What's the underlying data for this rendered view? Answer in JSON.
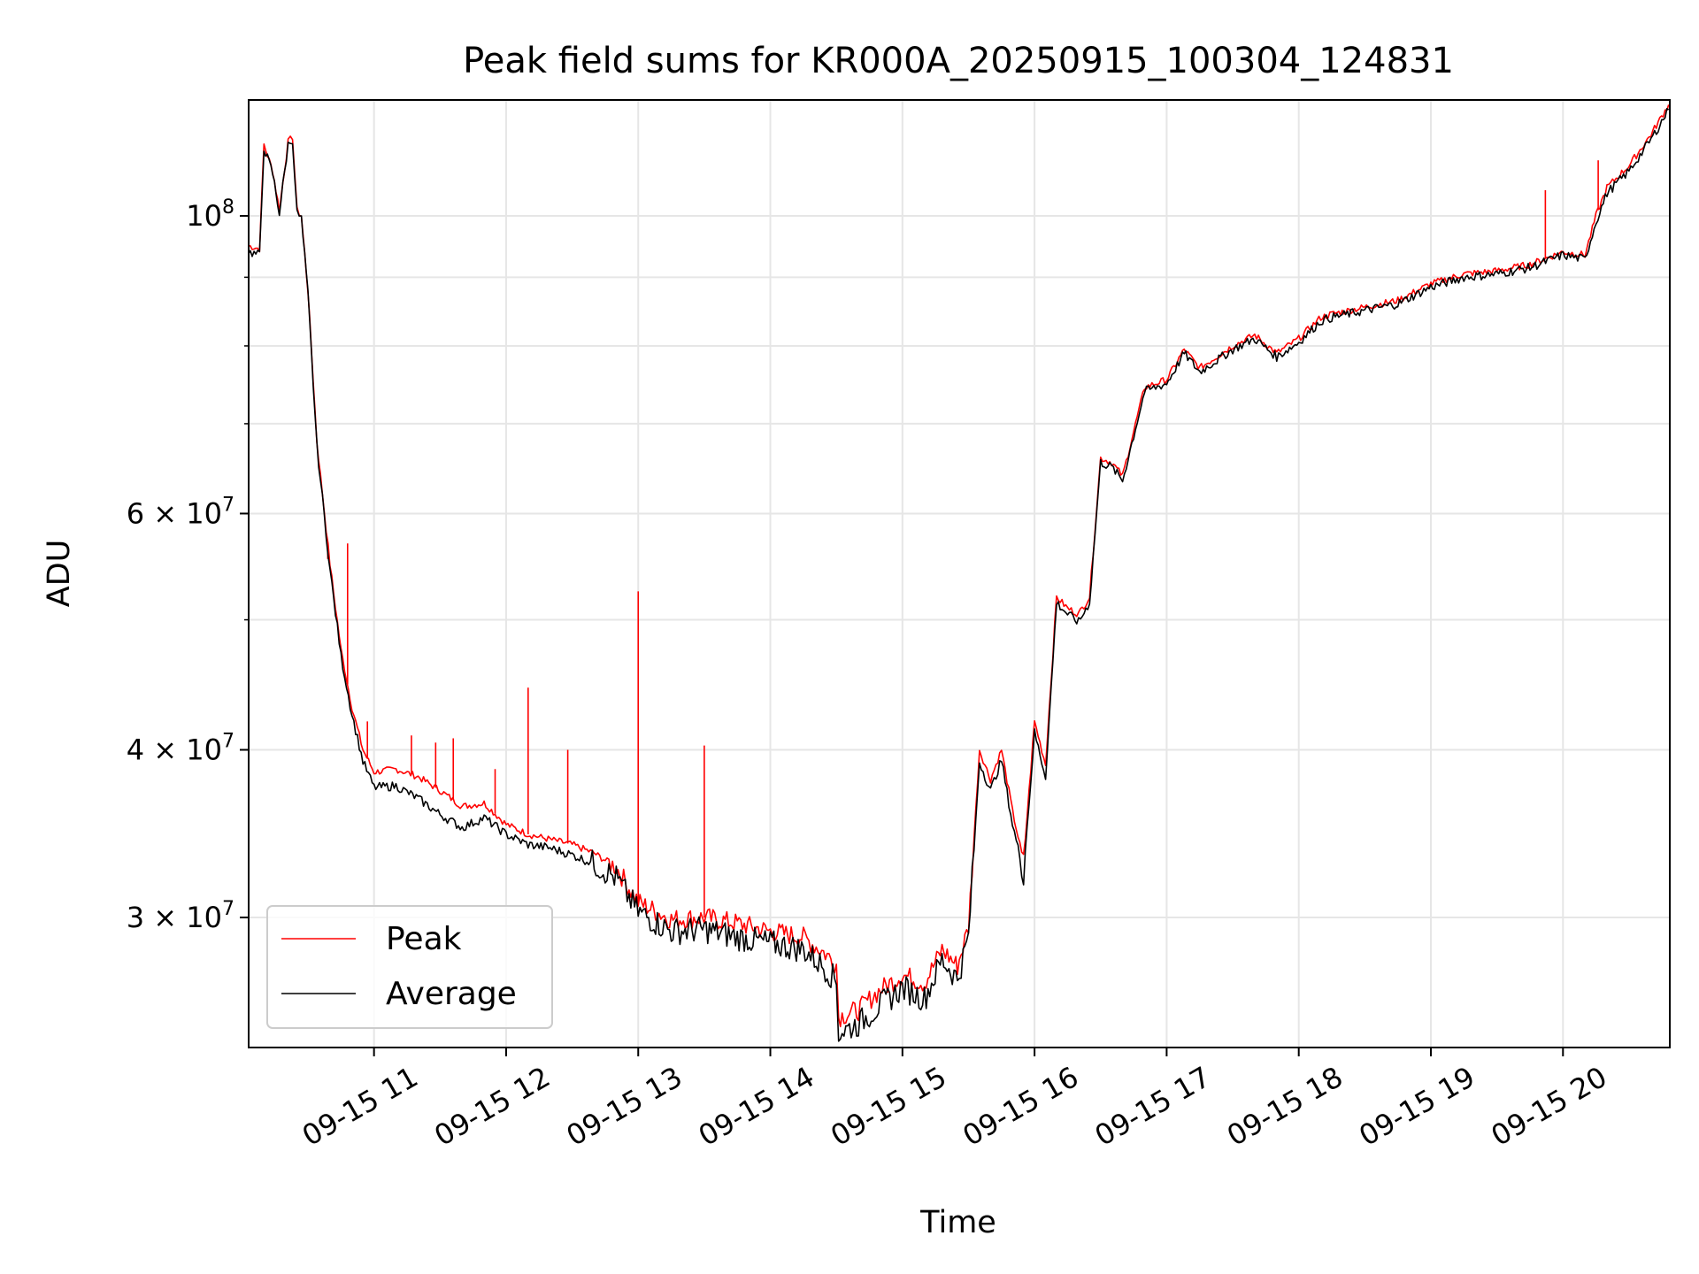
{
  "chart_data": {
    "type": "line",
    "title": "Peak field sums for KR000A_20250915_100304_124831",
    "xlabel": "Time",
    "ylabel": "ADU",
    "y_scale": "log",
    "ylim": [
      24000000,
      122000000
    ],
    "xlim": [
      "2025-09-15 10:03:04",
      "2025-09-15 20:48:31"
    ],
    "grid": true,
    "legend_position": "lower-left",
    "x_tick_labels": [
      "09-15 11",
      "09-15 12",
      "09-15 13",
      "09-15 14",
      "09-15 15",
      "09-15 16",
      "09-15 17",
      "09-15 18",
      "09-15 19",
      "09-15 20"
    ],
    "y_major_ticks": [
      {
        "value": 30000000,
        "mantissa": "3",
        "exp": "7"
      },
      {
        "value": 40000000,
        "mantissa": "4",
        "exp": "7"
      },
      {
        "value": 60000000,
        "mantissa": "6",
        "exp": "7"
      },
      {
        "value": 100000000,
        "mantissa": "",
        "exp": "8"
      }
    ],
    "y_times": "×",
    "y_base": "10",
    "series": [
      {
        "name": "Peak",
        "color": "#ff0000",
        "points": [
          [
            "2025-09-15 10:03",
            95000000
          ],
          [
            "2025-09-15 10:08",
            94500000
          ],
          [
            "2025-09-15 10:10",
            113000000
          ],
          [
            "2025-09-15 10:14",
            108000000
          ],
          [
            "2025-09-15 10:17",
            101000000
          ],
          [
            "2025-09-15 10:21",
            113500000
          ],
          [
            "2025-09-15 10:23",
            114500000
          ],
          [
            "2025-09-15 10:25",
            101000000
          ],
          [
            "2025-09-15 10:27",
            100000000
          ],
          [
            "2025-09-15 10:30",
            88000000
          ],
          [
            "2025-09-15 10:34",
            68000000
          ],
          [
            "2025-09-15 10:40",
            55000000
          ],
          [
            "2025-09-15 10:45",
            47500000
          ],
          [
            "2025-09-15 10:50",
            43000000
          ],
          [
            "2025-09-15 10:55",
            40000000
          ],
          [
            "2025-09-15 11:00",
            38500000
          ],
          [
            "2025-09-15 11:10",
            38700000
          ],
          [
            "2025-09-15 11:20",
            38200000
          ],
          [
            "2025-09-15 11:30",
            37300000
          ],
          [
            "2025-09-15 11:40",
            36300000
          ],
          [
            "2025-09-15 11:50",
            36500000
          ],
          [
            "2025-09-15 12:00",
            35200000
          ],
          [
            "2025-09-15 12:10",
            34600000
          ],
          [
            "2025-09-15 12:20",
            34300000
          ],
          [
            "2025-09-15 12:30",
            34000000
          ],
          [
            "2025-09-15 12:40",
            33500000
          ],
          [
            "2025-09-15 12:50",
            32700000
          ],
          [
            "2025-09-15 13:00",
            30800000
          ],
          [
            "2025-09-15 13:15",
            29900000
          ],
          [
            "2025-09-15 13:30",
            30000000
          ],
          [
            "2025-09-15 13:45",
            29700000
          ],
          [
            "2025-09-15 14:00",
            29300000
          ],
          [
            "2025-09-15 14:15",
            29000000
          ],
          [
            "2025-09-15 14:25",
            28200000
          ],
          [
            "2025-09-15 14:30",
            27700000
          ],
          [
            "2025-09-15 14:31",
            25300000
          ],
          [
            "2025-09-15 14:40",
            25600000
          ],
          [
            "2025-09-15 14:50",
            26500000
          ],
          [
            "2025-09-15 15:00",
            27200000
          ],
          [
            "2025-09-15 15:10",
            26800000
          ],
          [
            "2025-09-15 15:18",
            28400000
          ],
          [
            "2025-09-15 15:25",
            27600000
          ],
          [
            "2025-09-15 15:30",
            29500000
          ],
          [
            "2025-09-15 15:35",
            40000000
          ],
          [
            "2025-09-15 15:40",
            38000000
          ],
          [
            "2025-09-15 15:45",
            40000000
          ],
          [
            "2025-09-15 15:50",
            36000000
          ],
          [
            "2025-09-15 15:55",
            33000000
          ],
          [
            "2025-09-15 16:00",
            42000000
          ],
          [
            "2025-09-15 16:05",
            39000000
          ],
          [
            "2025-09-15 16:10",
            52000000
          ],
          [
            "2025-09-15 16:15",
            51000000
          ],
          [
            "2025-09-15 16:20",
            50500000
          ],
          [
            "2025-09-15 16:25",
            52000000
          ],
          [
            "2025-09-15 16:30",
            66000000
          ],
          [
            "2025-09-15 16:35",
            65500000
          ],
          [
            "2025-09-15 16:40",
            64000000
          ],
          [
            "2025-09-15 16:50",
            74500000
          ],
          [
            "2025-09-15 17:00",
            75500000
          ],
          [
            "2025-09-15 17:08",
            79500000
          ],
          [
            "2025-09-15 17:15",
            77000000
          ],
          [
            "2025-09-15 17:30",
            80000000
          ],
          [
            "2025-09-15 17:40",
            81500000
          ],
          [
            "2025-09-15 17:50",
            79000000
          ],
          [
            "2025-09-15 18:00",
            81000000
          ],
          [
            "2025-09-15 18:10",
            84000000
          ],
          [
            "2025-09-15 18:15",
            84500000
          ],
          [
            "2025-09-15 18:30",
            85500000
          ],
          [
            "2025-09-15 18:45",
            86500000
          ],
          [
            "2025-09-15 19:00",
            89000000
          ],
          [
            "2025-09-15 19:15",
            90500000
          ],
          [
            "2025-09-15 19:30",
            91000000
          ],
          [
            "2025-09-15 19:45",
            92000000
          ],
          [
            "2025-09-15 20:00",
            94000000
          ],
          [
            "2025-09-15 20:10",
            93500000
          ],
          [
            "2025-09-15 20:15",
            100000000
          ],
          [
            "2025-09-15 20:20",
            105000000
          ],
          [
            "2025-09-15 20:30",
            109000000
          ],
          [
            "2025-09-15 20:40",
            115000000
          ],
          [
            "2025-09-15 20:48",
            121000000
          ]
        ],
        "spikes": [
          [
            "2025-09-15 10:39",
            55500000
          ],
          [
            "2025-09-15 10:48",
            57000000
          ],
          [
            "2025-09-15 10:57",
            42000000
          ],
          [
            "2025-09-15 11:17",
            41000000
          ],
          [
            "2025-09-15 11:28",
            40500000
          ],
          [
            "2025-09-15 11:36",
            40800000
          ],
          [
            "2025-09-15 11:55",
            38700000
          ],
          [
            "2025-09-15 12:10",
            44500000
          ],
          [
            "2025-09-15 12:28",
            40000000
          ],
          [
            "2025-09-15 13:00",
            52500000
          ],
          [
            "2025-09-15 13:30",
            40300000
          ],
          [
            "2025-09-15 19:52",
            104500000
          ],
          [
            "2025-09-15 20:16",
            110000000
          ]
        ]
      },
      {
        "name": "Average",
        "color": "#000000",
        "points": [
          [
            "2025-09-15 10:03",
            94000000
          ],
          [
            "2025-09-15 10:08",
            93500000
          ],
          [
            "2025-09-15 10:10",
            112500000
          ],
          [
            "2025-09-15 10:14",
            107500000
          ],
          [
            "2025-09-15 10:17",
            100500000
          ],
          [
            "2025-09-15 10:21",
            113000000
          ],
          [
            "2025-09-15 10:23",
            114000000
          ],
          [
            "2025-09-15 10:25",
            100500000
          ],
          [
            "2025-09-15 10:27",
            99500000
          ],
          [
            "2025-09-15 10:30",
            87500000
          ],
          [
            "2025-09-15 10:34",
            67500000
          ],
          [
            "2025-09-15 10:40",
            54500000
          ],
          [
            "2025-09-15 10:45",
            47000000
          ],
          [
            "2025-09-15 10:50",
            42500000
          ],
          [
            "2025-09-15 10:55",
            39200000
          ],
          [
            "2025-09-15 11:00",
            37500000
          ],
          [
            "2025-09-15 11:10",
            37600000
          ],
          [
            "2025-09-15 11:20",
            36800000
          ],
          [
            "2025-09-15 11:30",
            35800000
          ],
          [
            "2025-09-15 11:40",
            35000000
          ],
          [
            "2025-09-15 11:50",
            35600000
          ],
          [
            "2025-09-15 12:00",
            34600000
          ],
          [
            "2025-09-15 12:10",
            34000000
          ],
          [
            "2025-09-15 12:20",
            33800000
          ],
          [
            "2025-09-15 12:30",
            33400000
          ],
          [
            "2025-09-15 12:40",
            32900000
          ],
          [
            "2025-09-15 12:50",
            32100000
          ],
          [
            "2025-09-15 13:00",
            30300000
          ],
          [
            "2025-09-15 13:15",
            29300000
          ],
          [
            "2025-09-15 13:30",
            29400000
          ],
          [
            "2025-09-15 13:45",
            29000000
          ],
          [
            "2025-09-15 14:00",
            28700000
          ],
          [
            "2025-09-15 14:15",
            28400000
          ],
          [
            "2025-09-15 14:25",
            27500000
          ],
          [
            "2025-09-15 14:30",
            26900000
          ],
          [
            "2025-09-15 14:31",
            24600000
          ],
          [
            "2025-09-15 14:40",
            25000000
          ],
          [
            "2025-09-15 14:50",
            25800000
          ],
          [
            "2025-09-15 15:00",
            26600000
          ],
          [
            "2025-09-15 15:10",
            26100000
          ],
          [
            "2025-09-15 15:18",
            27900000
          ],
          [
            "2025-09-15 15:25",
            27000000
          ],
          [
            "2025-09-15 15:30",
            29000000
          ],
          [
            "2025-09-15 15:35",
            39200000
          ],
          [
            "2025-09-15 15:40",
            37300000
          ],
          [
            "2025-09-15 15:45",
            39300000
          ],
          [
            "2025-09-15 15:50",
            35200000
          ],
          [
            "2025-09-15 15:55",
            32400000
          ],
          [
            "2025-09-15 16:00",
            41200000
          ],
          [
            "2025-09-15 16:05",
            38200000
          ],
          [
            "2025-09-15 16:10",
            51500000
          ],
          [
            "2025-09-15 16:15",
            50500000
          ],
          [
            "2025-09-15 16:20",
            49800000
          ],
          [
            "2025-09-15 16:25",
            51500000
          ],
          [
            "2025-09-15 16:30",
            65500000
          ],
          [
            "2025-09-15 16:35",
            65000000
          ],
          [
            "2025-09-15 16:40",
            63500000
          ],
          [
            "2025-09-15 16:50",
            74000000
          ],
          [
            "2025-09-15 17:00",
            75000000
          ],
          [
            "2025-09-15 17:08",
            79000000
          ],
          [
            "2025-09-15 17:15",
            76500000
          ],
          [
            "2025-09-15 17:30",
            79500000
          ],
          [
            "2025-09-15 17:40",
            81000000
          ],
          [
            "2025-09-15 17:50",
            78500000
          ],
          [
            "2025-09-15 18:00",
            80500000
          ],
          [
            "2025-09-15 18:10",
            83500000
          ],
          [
            "2025-09-15 18:15",
            84000000
          ],
          [
            "2025-09-15 18:30",
            85000000
          ],
          [
            "2025-09-15 18:45",
            86000000
          ],
          [
            "2025-09-15 19:00",
            88500000
          ],
          [
            "2025-09-15 19:15",
            90000000
          ],
          [
            "2025-09-15 19:30",
            90500000
          ],
          [
            "2025-09-15 19:45",
            91500000
          ],
          [
            "2025-09-15 20:00",
            93500000
          ],
          [
            "2025-09-15 20:10",
            92800000
          ],
          [
            "2025-09-15 20:15",
            99000000
          ],
          [
            "2025-09-15 20:20",
            104000000
          ],
          [
            "2025-09-15 20:30",
            108000000
          ],
          [
            "2025-09-15 20:40",
            114000000
          ],
          [
            "2025-09-15 20:48",
            120000000
          ]
        ]
      }
    ]
  }
}
